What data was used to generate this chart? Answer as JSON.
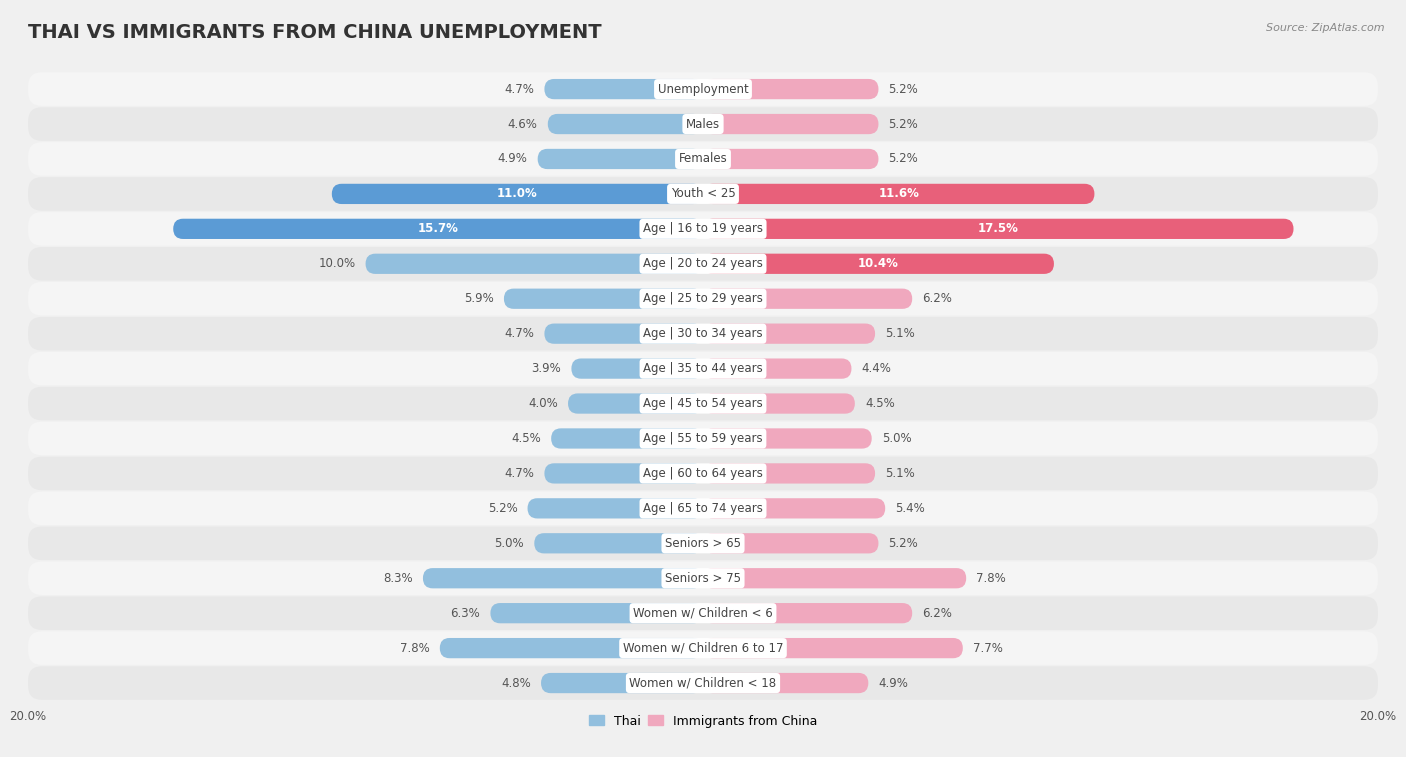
{
  "title": "THAI VS IMMIGRANTS FROM CHINA UNEMPLOYMENT",
  "source": "Source: ZipAtlas.com",
  "categories": [
    "Unemployment",
    "Males",
    "Females",
    "Youth < 25",
    "Age | 16 to 19 years",
    "Age | 20 to 24 years",
    "Age | 25 to 29 years",
    "Age | 30 to 34 years",
    "Age | 35 to 44 years",
    "Age | 45 to 54 years",
    "Age | 55 to 59 years",
    "Age | 60 to 64 years",
    "Age | 65 to 74 years",
    "Seniors > 65",
    "Seniors > 75",
    "Women w/ Children < 6",
    "Women w/ Children 6 to 17",
    "Women w/ Children < 18"
  ],
  "thai_values": [
    4.7,
    4.6,
    4.9,
    11.0,
    15.7,
    10.0,
    5.9,
    4.7,
    3.9,
    4.0,
    4.5,
    4.7,
    5.2,
    5.0,
    8.3,
    6.3,
    7.8,
    4.8
  ],
  "china_values": [
    5.2,
    5.2,
    5.2,
    11.6,
    17.5,
    10.4,
    6.2,
    5.1,
    4.4,
    4.5,
    5.0,
    5.1,
    5.4,
    5.2,
    7.8,
    6.2,
    7.7,
    4.9
  ],
  "thai_color": "#92bfde",
  "china_color": "#f0a8be",
  "thai_color_highlight": "#5b9bd5",
  "china_color_highlight": "#e8607a",
  "row_color_even": "#f5f5f5",
  "row_color_odd": "#e8e8e8",
  "label_pill_color": "#ffffff",
  "axis_limit": 20.0,
  "bar_height": 0.58,
  "title_fontsize": 14,
  "label_fontsize": 8.5,
  "value_fontsize": 8.5,
  "legend_fontsize": 9,
  "source_fontsize": 8,
  "highlight_threshold": 10.05
}
